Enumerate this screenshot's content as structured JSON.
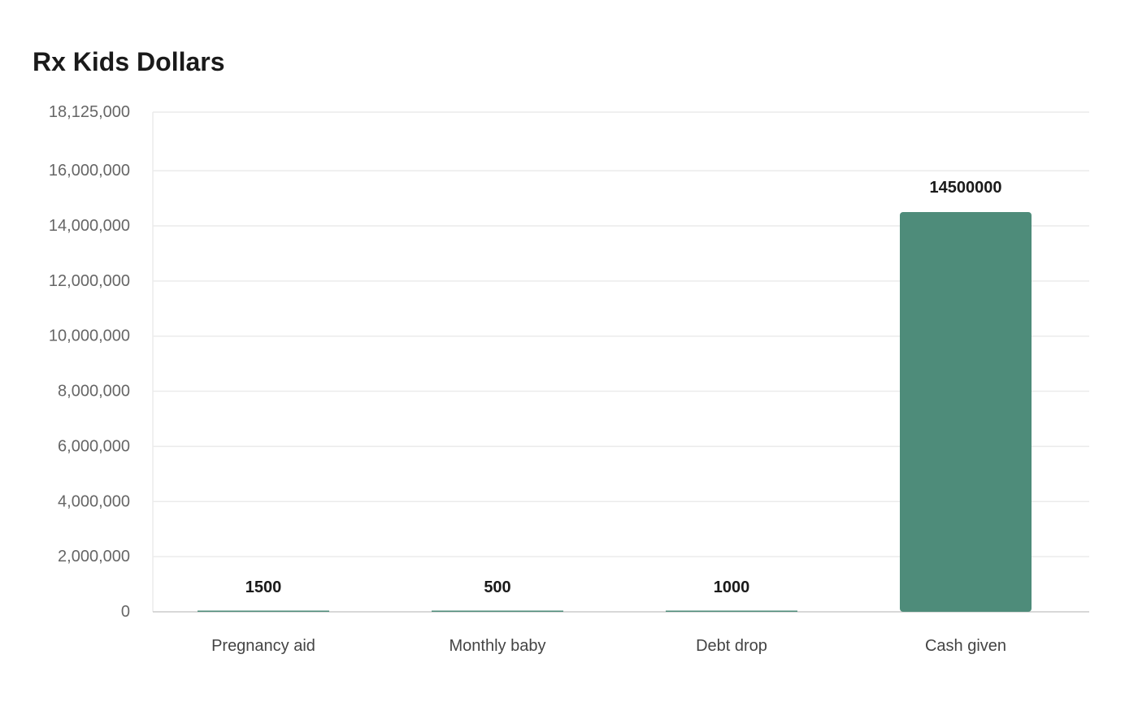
{
  "chart_data": {
    "type": "bar",
    "title": "Rx Kids Dollars",
    "categories": [
      "Pregnancy aid",
      "Monthly baby",
      "Debt drop",
      "Cash given"
    ],
    "values": [
      1500,
      500,
      1000,
      14500000
    ],
    "value_labels": [
      "1500",
      "500",
      "1000",
      "14500000"
    ],
    "xlabel": "",
    "ylabel": "",
    "ylim": [
      0,
      18125000
    ],
    "y_ticks": [
      0,
      2000000,
      4000000,
      6000000,
      8000000,
      10000000,
      12000000,
      14000000,
      16000000,
      18125000
    ],
    "y_tick_labels": [
      "0",
      "2,000,000",
      "4,000,000",
      "6,000,000",
      "8,000,000",
      "10,000,000",
      "12,000,000",
      "14,000,000",
      "16,000,000",
      "18,125,000"
    ],
    "grid": true,
    "legend": "none",
    "colors": {
      "bar": "#4e8c7a",
      "grid": "#ebebeb",
      "axis": "#cccccc"
    }
  }
}
